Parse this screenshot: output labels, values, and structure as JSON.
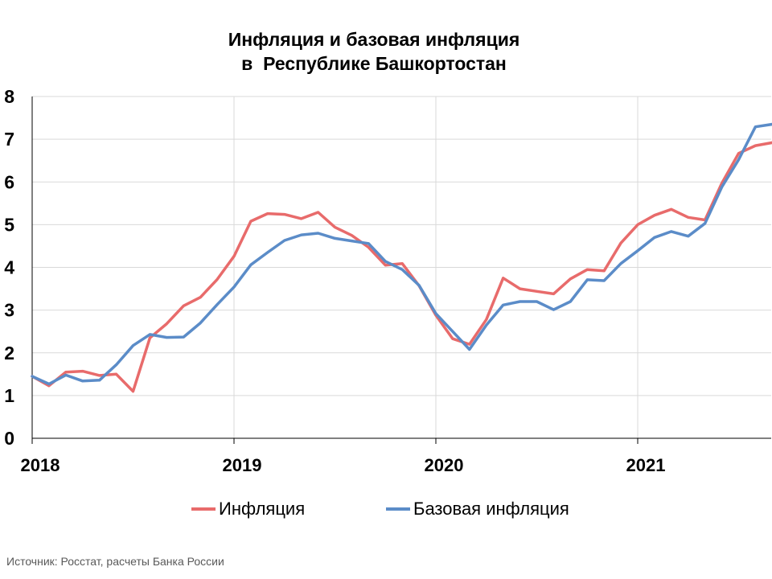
{
  "title": {
    "line1": "Инфляция и базовая инфляция",
    "line2": "в  Республике Башкортостан"
  },
  "source": "Источник: Росстат, расчеты Банка России",
  "colors": {
    "inflation": "#e86b6b",
    "core": "#5b8cc8",
    "grid": "#d9d9d9",
    "axis": "#000000"
  },
  "chart_data": {
    "type": "line",
    "title": "Инфляция и базовая инфляция в Республике Башкортостан",
    "x_ticks": [
      "2018",
      "2019",
      "2020",
      "2021"
    ],
    "ylim": [
      0,
      8
    ],
    "y_ticks": [
      0,
      1,
      2,
      3,
      4,
      5,
      6,
      7,
      8
    ],
    "grid": true,
    "legend_position": "bottom",
    "x_start": "2018-01",
    "x_frequency": "monthly",
    "series": [
      {
        "name": "Инфляция",
        "values": [
          1.45,
          1.23,
          1.55,
          1.57,
          1.47,
          1.5,
          1.1,
          2.35,
          2.68,
          3.1,
          3.3,
          3.72,
          4.26,
          5.08,
          5.26,
          5.24,
          5.14,
          5.29,
          4.94,
          4.75,
          4.47,
          4.05,
          4.09,
          3.57,
          2.88,
          2.33,
          2.2,
          2.78,
          3.75,
          3.5,
          3.44,
          3.38,
          3.73,
          3.95,
          3.92,
          4.57,
          5.0,
          5.22,
          5.36,
          5.17,
          5.11,
          5.97,
          6.67,
          6.85,
          6.92
        ]
      },
      {
        "name": "Базовая инфляция",
        "values": [
          1.45,
          1.27,
          1.48,
          1.34,
          1.36,
          1.72,
          2.17,
          2.43,
          2.36,
          2.37,
          2.7,
          3.13,
          3.54,
          4.06,
          4.35,
          4.63,
          4.76,
          4.8,
          4.68,
          4.62,
          4.56,
          4.14,
          3.95,
          3.58,
          2.92,
          2.5,
          2.08,
          2.65,
          3.12,
          3.2,
          3.2,
          3.01,
          3.2,
          3.71,
          3.69,
          4.09,
          4.39,
          4.7,
          4.84,
          4.73,
          5.03,
          5.88,
          6.52,
          7.29,
          7.35
        ]
      }
    ]
  }
}
